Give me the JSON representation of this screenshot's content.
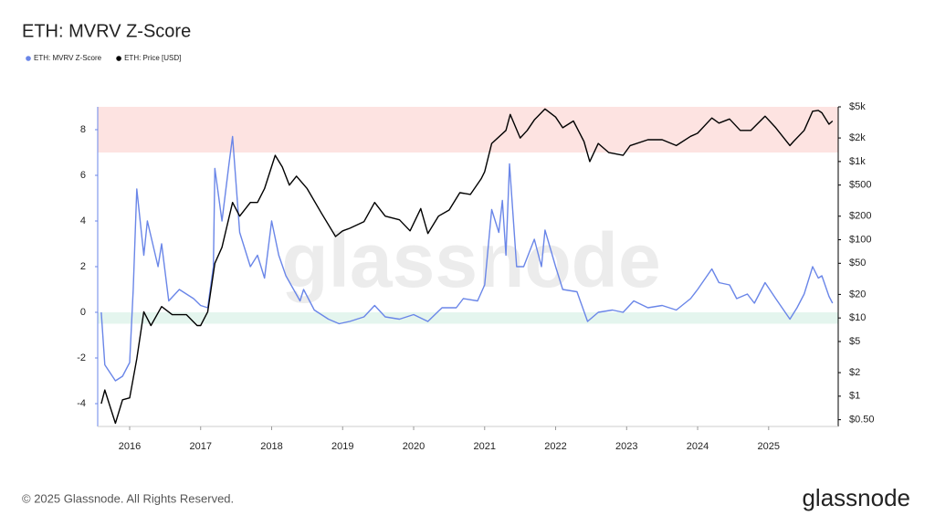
{
  "chart_data": {
    "type": "line",
    "title": "ETH: MVRV Z-Score",
    "watermark": "glassnode",
    "footer": "© 2025 Glassnode. All Rights Reserved.",
    "brand": "glassnode",
    "xlim": [
      2015.55,
      2025.98
    ],
    "xticks": [
      2016,
      2017,
      2018,
      2019,
      2020,
      2021,
      2022,
      2023,
      2024,
      2025
    ],
    "ylim": [
      -5,
      9
    ],
    "yticks": [
      8,
      6,
      4,
      2,
      0,
      -2,
      -4
    ],
    "y2lim": [
      0.41,
      5000
    ],
    "y2log": true,
    "y2ticks": [
      {
        "value": 5000,
        "label": "$5k"
      },
      {
        "value": 2000,
        "label": "$2k"
      },
      {
        "value": 1000,
        "label": "$1k"
      },
      {
        "value": 500,
        "label": "$500"
      },
      {
        "value": 200,
        "label": "$200"
      },
      {
        "value": 100,
        "label": "$100"
      },
      {
        "value": 50,
        "label": "$50"
      },
      {
        "value": 20,
        "label": "$20"
      },
      {
        "value": 10,
        "label": "$10"
      },
      {
        "value": 5,
        "label": "$5"
      },
      {
        "value": 2,
        "label": "$2"
      },
      {
        "value": 1,
        "label": "$1"
      },
      {
        "value": 0.5,
        "label": "$0.50"
      }
    ],
    "zones": [
      {
        "from": 7,
        "to": 9,
        "color": "#fde3e1"
      },
      {
        "from": -0.5,
        "to": 0,
        "color": "#e4f5ee"
      }
    ],
    "series": [
      {
        "name": "ETH: MVRV Z-Score",
        "color": "#6a86e8",
        "x": [
          2015.6,
          2015.65,
          2015.8,
          2015.9,
          2016.0,
          2016.05,
          2016.1,
          2016.2,
          2016.25,
          2016.4,
          2016.45,
          2016.55,
          2016.7,
          2016.9,
          2017.0,
          2017.1,
          2017.18,
          2017.2,
          2017.3,
          2017.4,
          2017.45,
          2017.55,
          2017.7,
          2017.8,
          2017.9,
          2018.0,
          2018.1,
          2018.2,
          2018.4,
          2018.45,
          2018.6,
          2018.8,
          2018.95,
          2019.1,
          2019.3,
          2019.45,
          2019.6,
          2019.8,
          2020.0,
          2020.2,
          2020.4,
          2020.6,
          2020.7,
          2020.9,
          2021.0,
          2021.1,
          2021.2,
          2021.25,
          2021.3,
          2021.35,
          2021.45,
          2021.55,
          2021.7,
          2021.8,
          2021.85,
          2022.0,
          2022.1,
          2022.3,
          2022.45,
          2022.6,
          2022.8,
          2022.95,
          2023.1,
          2023.3,
          2023.5,
          2023.7,
          2023.9,
          2024.0,
          2024.2,
          2024.3,
          2024.45,
          2024.55,
          2024.7,
          2024.8,
          2024.95,
          2025.1,
          2025.3,
          2025.4,
          2025.5,
          2025.62,
          2025.7,
          2025.75,
          2025.85,
          2025.9
        ],
        "values": [
          0,
          -2.3,
          -3,
          -2.8,
          -2.2,
          1,
          5.4,
          2.5,
          4.0,
          2.0,
          3,
          0.5,
          1.0,
          0.6,
          0.3,
          0.2,
          2,
          6.3,
          4,
          6.5,
          7.7,
          3.5,
          2,
          2.5,
          1.5,
          4.0,
          2.5,
          1.6,
          0.5,
          1.0,
          0.1,
          -0.3,
          -0.5,
          -0.4,
          -0.2,
          0.3,
          -0.2,
          -0.3,
          -0.1,
          -0.4,
          0.2,
          0.2,
          0.6,
          0.5,
          1.2,
          4.5,
          3.5,
          4.9,
          2.5,
          6.5,
          2.0,
          2.0,
          3.2,
          2.0,
          3.6,
          2.0,
          1.0,
          0.9,
          -0.4,
          0,
          0.1,
          0,
          0.5,
          0.2,
          0.3,
          0.1,
          0.6,
          1.0,
          1.9,
          1.3,
          1.2,
          0.6,
          0.8,
          0.4,
          1.3,
          0.6,
          -0.3,
          0.2,
          0.8,
          2.0,
          1.5,
          1.6,
          0.7,
          0.4
        ]
      },
      {
        "name": "ETH: Price [USD]",
        "color": "#000000",
        "axis": "y2",
        "x": [
          2015.6,
          2015.65,
          2015.8,
          2015.9,
          2016.0,
          2016.1,
          2016.2,
          2016.3,
          2016.45,
          2016.6,
          2016.8,
          2016.95,
          2017.0,
          2017.1,
          2017.2,
          2017.3,
          2017.45,
          2017.55,
          2017.7,
          2017.8,
          2017.9,
          2018.05,
          2018.15,
          2018.25,
          2018.35,
          2018.5,
          2018.7,
          2018.9,
          2019.0,
          2019.1,
          2019.3,
          2019.45,
          2019.6,
          2019.8,
          2019.95,
          2020.1,
          2020.2,
          2020.35,
          2020.5,
          2020.65,
          2020.8,
          2020.95,
          2021.0,
          2021.1,
          2021.3,
          2021.36,
          2021.5,
          2021.6,
          2021.7,
          2021.85,
          2022.0,
          2022.1,
          2022.25,
          2022.4,
          2022.48,
          2022.6,
          2022.75,
          2022.95,
          2023.05,
          2023.3,
          2023.5,
          2023.7,
          2023.9,
          2024.0,
          2024.2,
          2024.3,
          2024.45,
          2024.6,
          2024.75,
          2024.95,
          2025.1,
          2025.3,
          2025.35,
          2025.5,
          2025.62,
          2025.7,
          2025.75,
          2025.85,
          2025.9
        ],
        "values": [
          0.8,
          1.2,
          0.45,
          0.9,
          0.95,
          3,
          12,
          8,
          14,
          11,
          11,
          8,
          8,
          12,
          50,
          80,
          300,
          200,
          300,
          300,
          450,
          1200,
          850,
          500,
          650,
          450,
          220,
          110,
          130,
          140,
          170,
          300,
          200,
          180,
          130,
          250,
          120,
          200,
          240,
          400,
          380,
          600,
          740,
          1700,
          2500,
          4000,
          2000,
          2500,
          3400,
          4700,
          3700,
          2700,
          3300,
          1800,
          1000,
          1700,
          1300,
          1200,
          1600,
          1900,
          1900,
          1600,
          2100,
          2300,
          3600,
          3100,
          3500,
          2500,
          2500,
          3800,
          2700,
          1600,
          1800,
          2500,
          4400,
          4500,
          4200,
          3000,
          3300
        ]
      }
    ]
  }
}
